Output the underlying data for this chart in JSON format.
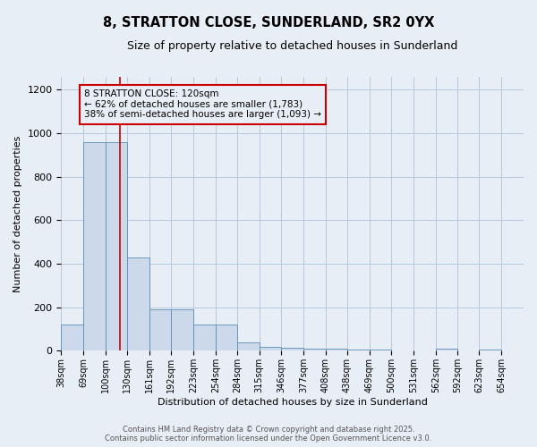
{
  "title1": "8, STRATTON CLOSE, SUNDERLAND, SR2 0YX",
  "title2": "Size of property relative to detached houses in Sunderland",
  "xlabel": "Distribution of detached houses by size in Sunderland",
  "ylabel": "Number of detached properties",
  "bin_edges": [
    38,
    69,
    100,
    130,
    161,
    192,
    223,
    254,
    284,
    315,
    346,
    377,
    408,
    438,
    469,
    500,
    531,
    562,
    592,
    623,
    654
  ],
  "bar_heights": [
    120,
    960,
    960,
    430,
    190,
    190,
    120,
    120,
    40,
    20,
    15,
    10,
    10,
    5,
    5,
    0,
    0,
    8,
    0,
    5
  ],
  "bar_color": "#ccd9ea",
  "bar_edge_color": "#5b8db8",
  "grid_color": "#b8c8dc",
  "background_color": "#e8eef5",
  "red_line_x": 120,
  "annotation_text": "8 STRATTON CLOSE: 120sqm\n← 62% of detached houses are smaller (1,783)\n38% of semi-detached houses are larger (1,093) →",
  "annotation_box_color": "#cc0000",
  "ylim": [
    0,
    1260
  ],
  "yticks": [
    0,
    200,
    400,
    600,
    800,
    1000,
    1200
  ],
  "footer1": "Contains HM Land Registry data © Crown copyright and database right 2025.",
  "footer2": "Contains public sector information licensed under the Open Government Licence v3.0."
}
